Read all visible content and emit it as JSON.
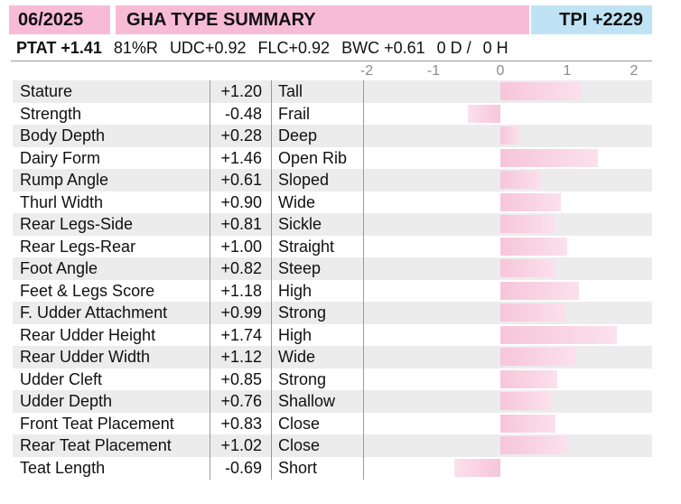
{
  "header": {
    "date": "06/2025",
    "title": "GHA TYPE SUMMARY",
    "tpi": "TPI +2229"
  },
  "summary": {
    "ptat": "PTAT +1.41",
    "reliability": "81%R",
    "udc": "UDC+0.92",
    "flc": "FLC+0.92",
    "bwc": "BWC +0.61",
    "daughters": "0 D /",
    "herds": "0 H"
  },
  "colors": {
    "header_pink": "#f8bbd6",
    "tpi_blue": "#bfe3f5",
    "bar_pink": "#f7c5da",
    "row_shade": "#ececec"
  },
  "chart_data": {
    "type": "bar",
    "orientation": "horizontal",
    "xlim": [
      -2,
      2
    ],
    "x_ticks": [
      "-2",
      "-1",
      "0",
      "1",
      "2"
    ],
    "grid": false,
    "categories": [
      "Stature",
      "Strength",
      "Body Depth",
      "Dairy Form",
      "Rump Angle",
      "Thurl Width",
      "Rear Legs-Side",
      "Rear Legs-Rear",
      "Foot Angle",
      "Feet & Legs Score",
      "F. Udder Attachment",
      "Rear Udder Height",
      "Rear Udder Width",
      "Udder Cleft",
      "Udder Depth",
      "Front Teat Placement",
      "Rear Teat Placement",
      "Teat Length"
    ],
    "values": [
      1.2,
      -0.48,
      0.28,
      1.46,
      0.61,
      0.9,
      0.81,
      1.0,
      0.82,
      1.18,
      0.99,
      1.74,
      1.12,
      0.85,
      0.76,
      0.83,
      1.02,
      -0.69
    ],
    "value_labels": [
      "+1.20",
      "-0.48",
      "+0.28",
      "+1.46",
      "+0.61",
      "+0.90",
      "+0.81",
      "+1.00",
      "+0.82",
      "+1.18",
      "+0.99",
      "+1.74",
      "+1.12",
      "+0.85",
      "+0.76",
      "+0.83",
      "+1.02",
      "-0.69"
    ],
    "descriptors": [
      "Tall",
      "Frail",
      "Deep",
      "Open Rib",
      "Sloped",
      "Wide",
      "Sickle",
      "Straight",
      "Steep",
      "High",
      "Strong",
      "High",
      "Wide",
      "Strong",
      "Shallow",
      "Close",
      "Close",
      "Short"
    ]
  }
}
